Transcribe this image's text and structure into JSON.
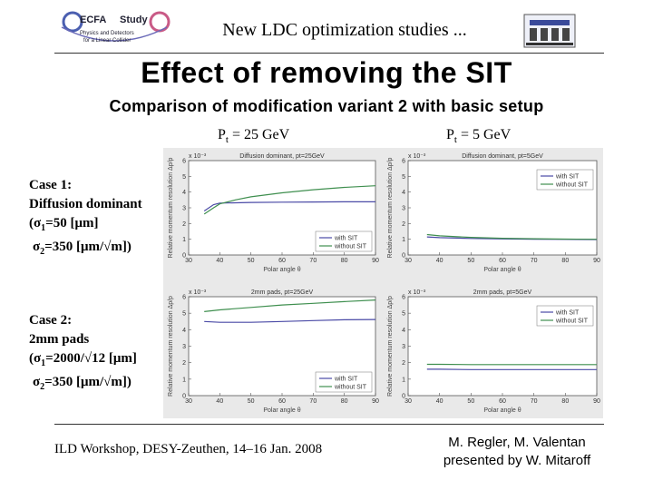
{
  "header": {
    "logo_text_main": "ECFA",
    "logo_text_study": "Study",
    "logo_sub1": "Physics and Detectors",
    "logo_sub2": "for a Linear Collider",
    "top_title": "New LDC optimization studies ..."
  },
  "slide": {
    "title": "Effect of removing the SIT",
    "subtitle": "Comparison of modification variant 2 with basic setup",
    "col1_prefix": "P",
    "col1_sub": "t",
    "col1_value": " = 25 GeV",
    "col2_prefix": "P",
    "col2_sub": "t",
    "col2_value": " = 5 GeV"
  },
  "cases": [
    {
      "line1": "Case 1:",
      "line2": "Diffusion dominant",
      "line3_pre": "(σ",
      "line3_sub": "1",
      "line3_post": "=50 [μm]",
      "line4_pre": "σ",
      "line4_sub": "2",
      "line4_post": "=350 [μm/√m])"
    },
    {
      "line1": "Case 2:",
      "line2": "2mm pads",
      "line3_pre": "(σ",
      "line3_sub": "1",
      "line3_post": "=2000/√12 [μm]",
      "line4_pre": "σ",
      "line4_sub": "2",
      "line4_post": "=350 [μm/√m])"
    }
  ],
  "footer": {
    "left": "ILD Workshop, DESY-Zeuthen, 14–16 Jan. 2008",
    "right_line1": "M. Regler, M. Valentan",
    "right_line2": "presented by W. Mitaroff"
  },
  "colors": {
    "with_sit": "#4a4aa6",
    "without_sit": "#3f8f4f",
    "frame": "#e9e9e9"
  },
  "chart_data": [
    {
      "type": "line",
      "title": "Diffusion dominant, pt=25GeV",
      "xlabel": "Polar angle θ",
      "ylabel": "Relative momentum resolution Δp/p",
      "scale_label": "x 10⁻³",
      "xlim": [
        30,
        90
      ],
      "xticks": [
        30,
        40,
        50,
        60,
        70,
        80,
        90
      ],
      "ylim": [
        0,
        6
      ],
      "yticks": [
        0,
        1,
        2,
        3,
        4,
        5,
        6
      ],
      "legend": [
        "with SIT",
        "without SIT"
      ],
      "legend_position": "bottom-right",
      "series": [
        {
          "name": "with SIT",
          "x": [
            35,
            38,
            40,
            45,
            50,
            60,
            70,
            80,
            90
          ],
          "y": [
            2.8,
            3.2,
            3.3,
            3.32,
            3.34,
            3.36,
            3.37,
            3.38,
            3.38
          ]
        },
        {
          "name": "without SIT",
          "x": [
            35,
            38,
            40,
            45,
            50,
            60,
            70,
            80,
            90
          ],
          "y": [
            2.6,
            3.0,
            3.25,
            3.5,
            3.7,
            3.95,
            4.15,
            4.3,
            4.4
          ]
        }
      ]
    },
    {
      "type": "line",
      "title": "Diffusion dominant, pt=5GeV",
      "xlabel": "Polar angle θ",
      "ylabel": "Relative momentum resolution Δp/p",
      "scale_label": "x 10⁻³",
      "xlim": [
        30,
        90
      ],
      "xticks": [
        30,
        40,
        50,
        60,
        70,
        80,
        90
      ],
      "ylim": [
        0,
        6
      ],
      "yticks": [
        0,
        1,
        2,
        3,
        4,
        5,
        6
      ],
      "legend": [
        "with SIT",
        "without SIT"
      ],
      "legend_position": "top-right",
      "series": [
        {
          "name": "with SIT",
          "x": [
            36,
            40,
            50,
            60,
            70,
            80,
            90
          ],
          "y": [
            1.15,
            1.1,
            1.05,
            1.02,
            1.0,
            0.99,
            0.98
          ]
        },
        {
          "name": "without SIT",
          "x": [
            36,
            40,
            50,
            60,
            70,
            80,
            90
          ],
          "y": [
            1.3,
            1.22,
            1.12,
            1.06,
            1.03,
            1.01,
            1.0
          ]
        }
      ]
    },
    {
      "type": "line",
      "title": "2mm pads, pt=25GeV",
      "xlabel": "Polar angle θ",
      "ylabel": "Relative momentum resolution Δp/p",
      "scale_label": "x 10⁻³",
      "xlim": [
        30,
        90
      ],
      "xticks": [
        30,
        40,
        50,
        60,
        70,
        80,
        90
      ],
      "ylim": [
        0,
        6
      ],
      "yticks": [
        0,
        1,
        2,
        3,
        4,
        5,
        6
      ],
      "legend": [
        "with SIT",
        "without SIT"
      ],
      "legend_position": "bottom-right",
      "series": [
        {
          "name": "with SIT",
          "x": [
            35,
            40,
            50,
            60,
            70,
            80,
            90
          ],
          "y": [
            4.5,
            4.45,
            4.45,
            4.5,
            4.55,
            4.6,
            4.62
          ]
        },
        {
          "name": "without SIT",
          "x": [
            35,
            40,
            50,
            60,
            70,
            80,
            90
          ],
          "y": [
            5.1,
            5.2,
            5.35,
            5.5,
            5.6,
            5.7,
            5.8
          ]
        }
      ]
    },
    {
      "type": "line",
      "title": "2mm pads, pt=5GeV",
      "xlabel": "Polar angle θ",
      "ylabel": "Relative momentum resolution Δp/p",
      "scale_label": "x 10⁻³",
      "xlim": [
        30,
        90
      ],
      "xticks": [
        30,
        40,
        50,
        60,
        70,
        80,
        90
      ],
      "ylim": [
        0,
        6
      ],
      "yticks": [
        0,
        1,
        2,
        3,
        4,
        5,
        6
      ],
      "legend": [
        "with SIT",
        "without SIT"
      ],
      "legend_position": "top-right",
      "series": [
        {
          "name": "with SIT",
          "x": [
            36,
            40,
            50,
            60,
            70,
            80,
            90
          ],
          "y": [
            1.6,
            1.6,
            1.58,
            1.58,
            1.58,
            1.58,
            1.58
          ]
        },
        {
          "name": "without SIT",
          "x": [
            36,
            40,
            50,
            60,
            70,
            80,
            90
          ],
          "y": [
            1.9,
            1.9,
            1.88,
            1.88,
            1.88,
            1.88,
            1.88
          ]
        }
      ]
    }
  ]
}
